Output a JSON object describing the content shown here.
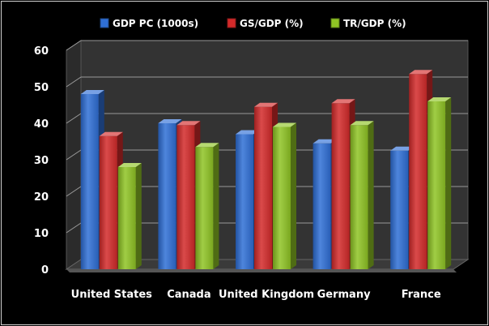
{
  "chart_data": {
    "type": "bar",
    "categories": [
      "United States",
      "Canada",
      "United Kingdom",
      "Germany",
      "France"
    ],
    "series": [
      {
        "name": "GDP PC (1000s)",
        "color": "#2f6fd6",
        "values": [
          48,
          40,
          37,
          34.5,
          32.5
        ]
      },
      {
        "name": "GS/GDP (%)",
        "color": "#d42a2a",
        "values": [
          36.5,
          39.5,
          44.5,
          45.5,
          53.5
        ]
      },
      {
        "name": "TR/GDP (%)",
        "color": "#8fc424",
        "values": [
          28,
          33.5,
          39,
          39.5,
          46
        ]
      }
    ],
    "title": "",
    "xlabel": "",
    "ylabel": "",
    "ylim": [
      0,
      60
    ],
    "yticks": [
      0,
      10,
      20,
      30,
      40,
      50,
      60
    ],
    "grid": true,
    "legend_position": "top",
    "style": "3d-column",
    "background_color": "#000000",
    "plot_wall_color": "#333333"
  }
}
